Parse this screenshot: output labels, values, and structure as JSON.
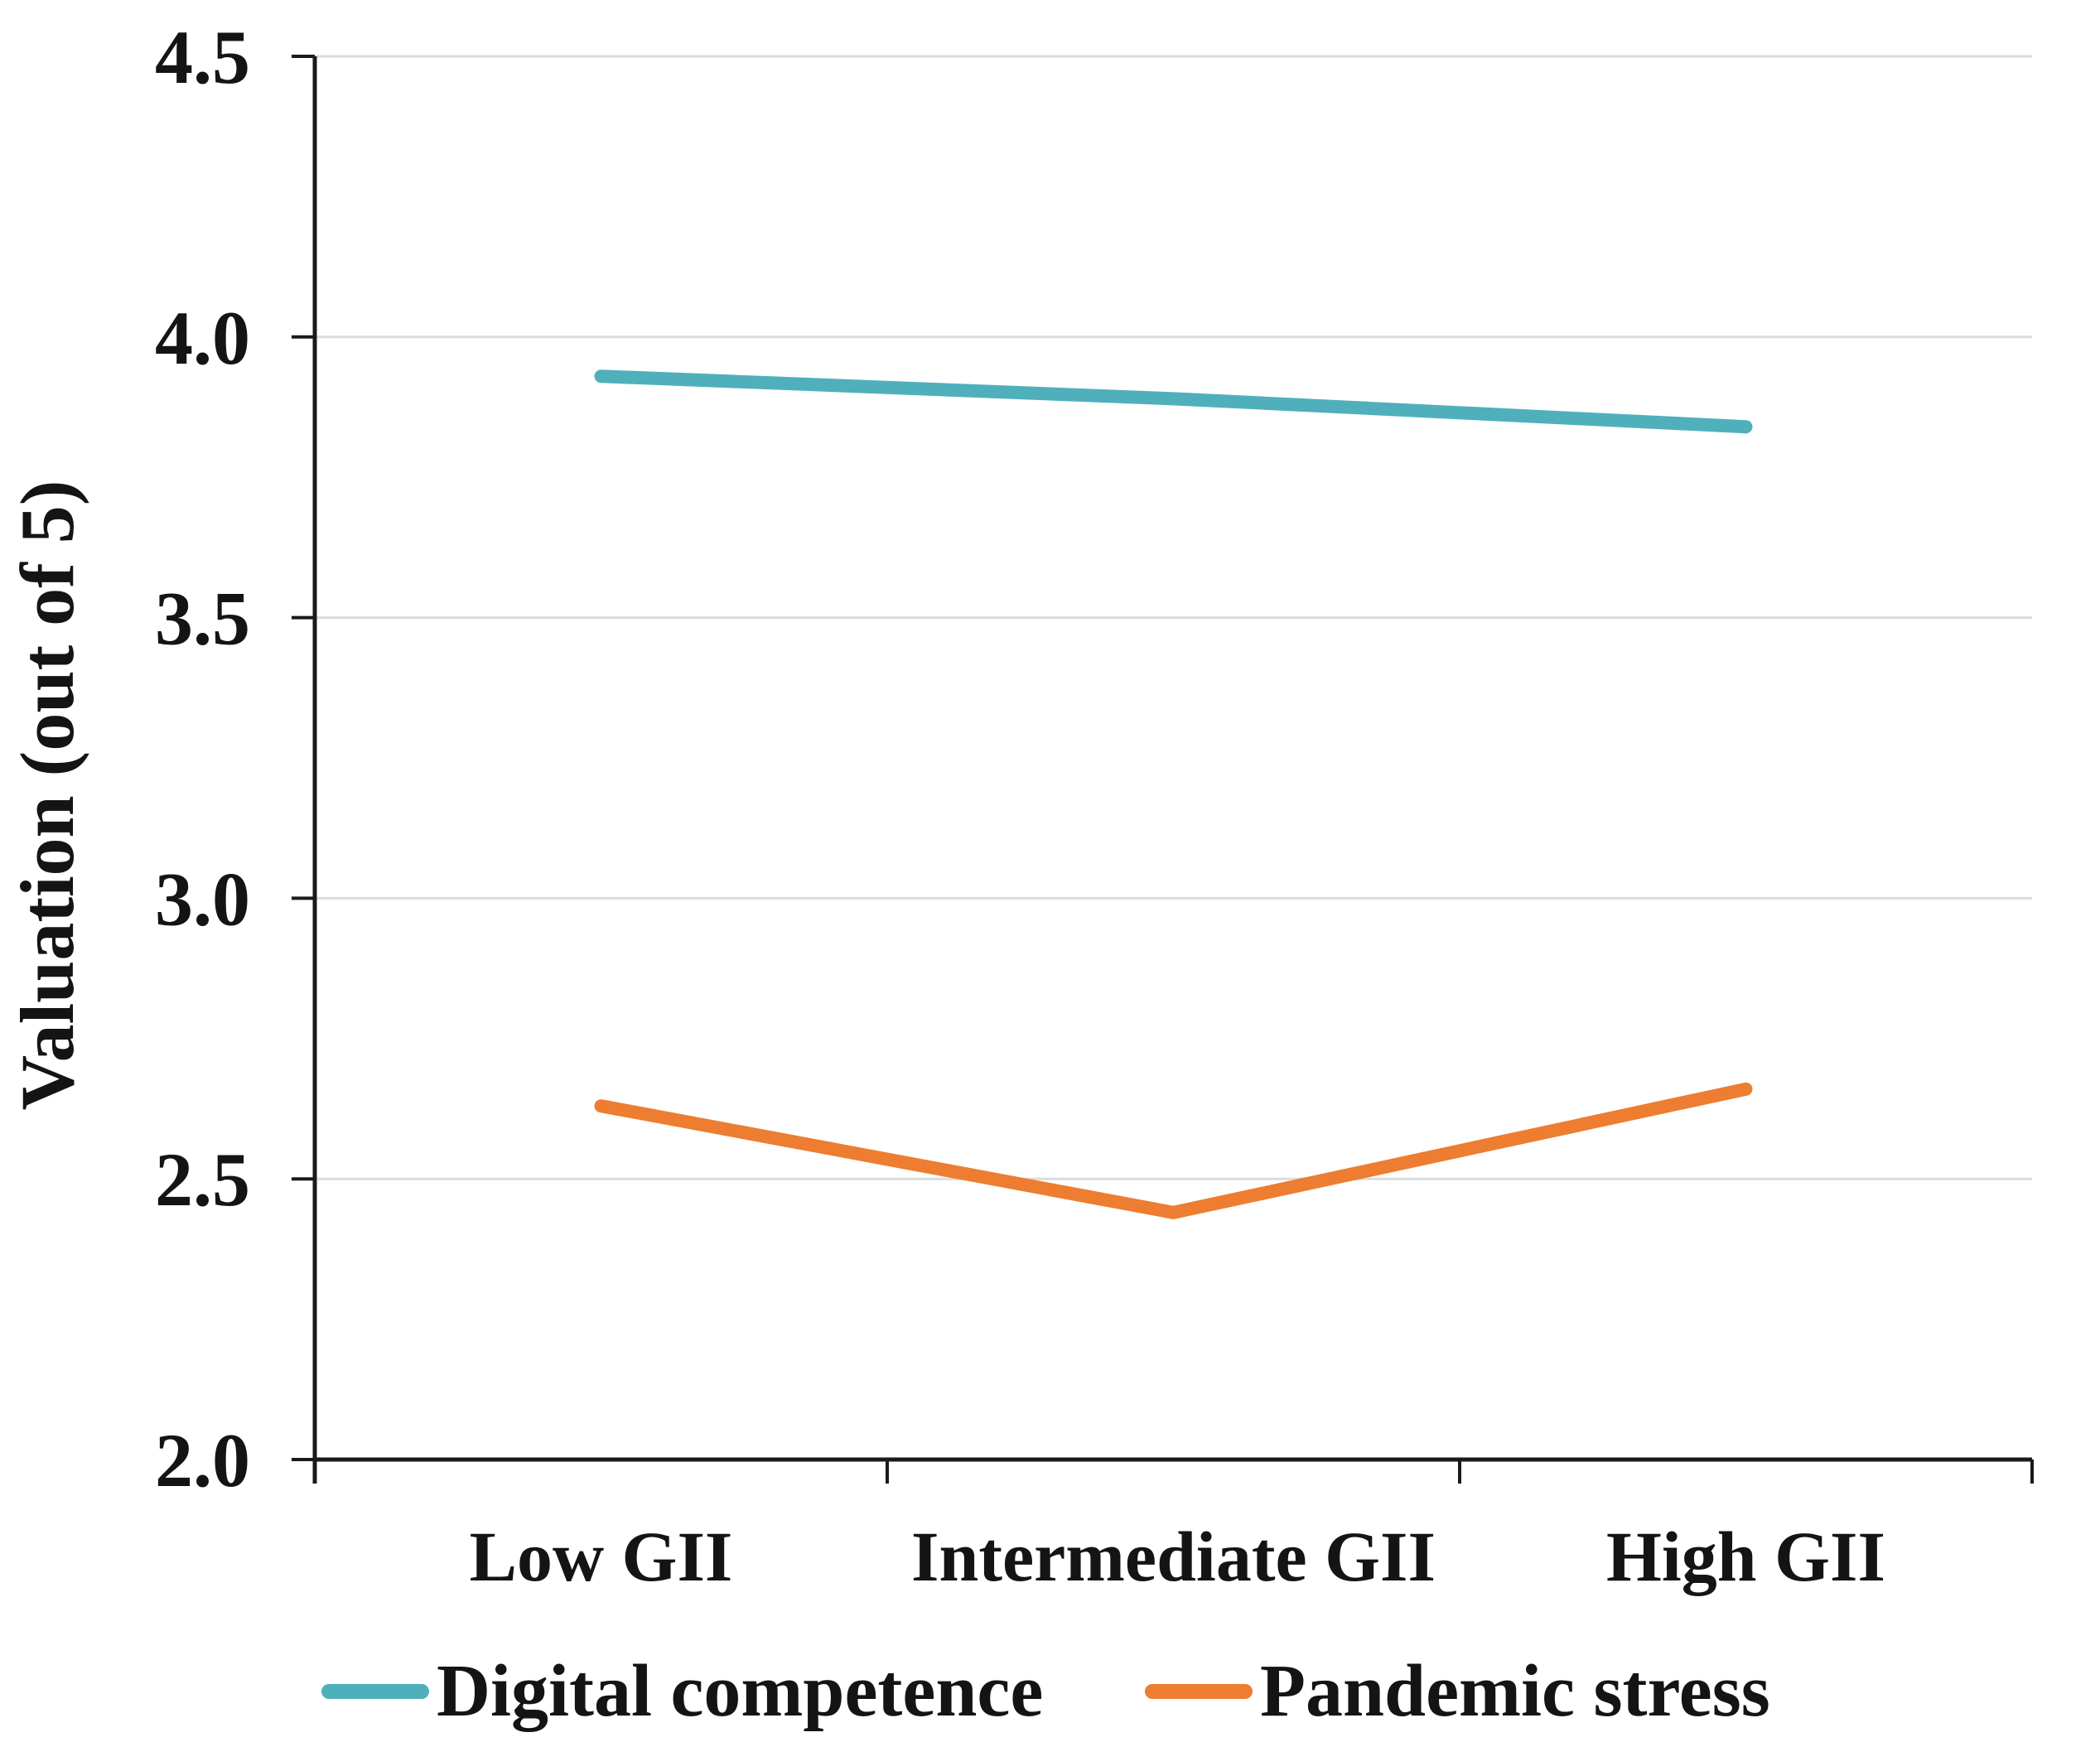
{
  "chart_data": {
    "type": "line",
    "title": "",
    "ylabel": "Valuation (out of 5)",
    "xlabel": "",
    "categories": [
      "Low GII",
      "Intermediate GII",
      "High GII"
    ],
    "series": [
      {
        "name": "Digital competence",
        "color": "#4FB0BB",
        "values": [
          3.93,
          3.89,
          3.84
        ]
      },
      {
        "name": "Pandemic stress",
        "color": "#ED7D31",
        "values": [
          2.63,
          2.44,
          2.66
        ]
      }
    ],
    "ylim": [
      2.0,
      4.5
    ],
    "ytick_labels": [
      "2.0",
      "2.5",
      "3.0",
      "3.5",
      "4.0",
      "4.5"
    ],
    "grid": "horizontal",
    "gridline_color": "#DCDCDC",
    "axis_color": "#1a1a1a",
    "text_color": "#141414",
    "legend_position": "bottom"
  }
}
